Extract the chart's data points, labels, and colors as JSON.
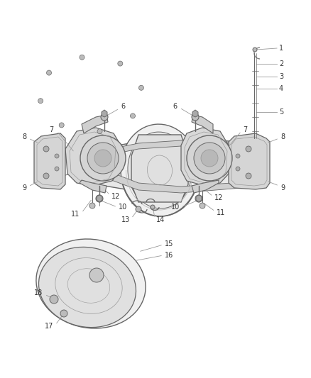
{
  "bg_color": "#ffffff",
  "line_color": "#444444",
  "gray1": "#999999",
  "gray2": "#bbbbbb",
  "gray3": "#666666",
  "gray4": "#cccccc",
  "label_fs": 7,
  "callout_lw": 0.6,
  "figsize": [
    4.38,
    5.33
  ],
  "dpi": 100
}
